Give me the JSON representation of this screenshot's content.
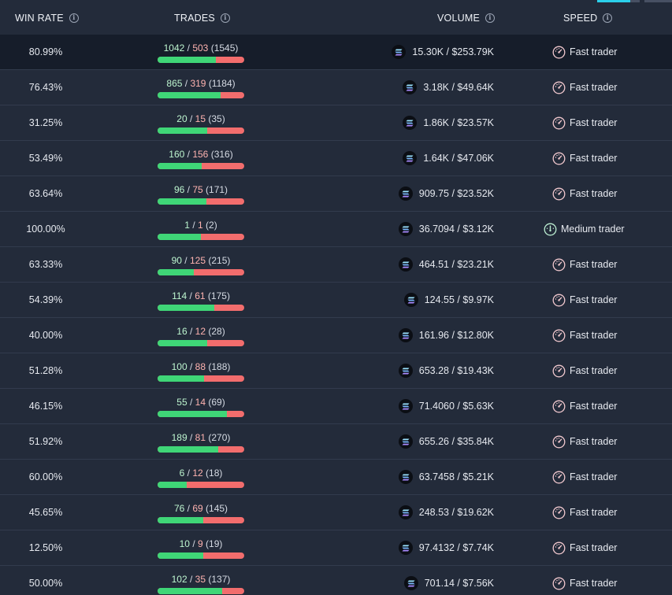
{
  "header": {
    "win_rate": "WIN RATE",
    "trades": "TRADES",
    "volume": "VOLUME",
    "speed": "SPEED"
  },
  "icons": {
    "info": "info-icon",
    "token": "solana-icon",
    "fast": "speedometer-icon",
    "medium": "speedometer-icon"
  },
  "colors": {
    "win": "#3fd677",
    "loss": "#f26d6d",
    "accent_tab": "#2bd0ea",
    "highlight_row": "#161d2a"
  },
  "rows": [
    {
      "win_rate": "80.99%",
      "wins": "1042",
      "losses": "503",
      "total": "(1545)",
      "win_fraction": 0.674,
      "amount": "15.30K",
      "usd": "$253.79K",
      "speed": "Fast trader",
      "speed_type": "fast"
    },
    {
      "win_rate": "76.43%",
      "wins": "865",
      "losses": "319",
      "total": "(1184)",
      "win_fraction": 0.731,
      "amount": "3.18K",
      "usd": "$49.64K",
      "speed": "Fast trader",
      "speed_type": "fast"
    },
    {
      "win_rate": "31.25%",
      "wins": "20",
      "losses": "15",
      "total": "(35)",
      "win_fraction": 0.571,
      "amount": "1.86K",
      "usd": "$23.57K",
      "speed": "Fast trader",
      "speed_type": "fast"
    },
    {
      "win_rate": "53.49%",
      "wins": "160",
      "losses": "156",
      "total": "(316)",
      "win_fraction": 0.506,
      "amount": "1.64K",
      "usd": "$47.06K",
      "speed": "Fast trader",
      "speed_type": "fast"
    },
    {
      "win_rate": "63.64%",
      "wins": "96",
      "losses": "75",
      "total": "(171)",
      "win_fraction": 0.561,
      "amount": "909.75",
      "usd": "$23.52K",
      "speed": "Fast trader",
      "speed_type": "fast"
    },
    {
      "win_rate": "100.00%",
      "wins": "1",
      "losses": "1",
      "total": "(2)",
      "win_fraction": 0.5,
      "amount": "36.7094",
      "usd": "$3.12K",
      "speed": "Medium trader",
      "speed_type": "medium"
    },
    {
      "win_rate": "63.33%",
      "wins": "90",
      "losses": "125",
      "total": "(215)",
      "win_fraction": 0.419,
      "amount": "464.51",
      "usd": "$23.21K",
      "speed": "Fast trader",
      "speed_type": "fast"
    },
    {
      "win_rate": "54.39%",
      "wins": "114",
      "losses": "61",
      "total": "(175)",
      "win_fraction": 0.651,
      "amount": "124.55",
      "usd": "$9.97K",
      "speed": "Fast trader",
      "speed_type": "fast"
    },
    {
      "win_rate": "40.00%",
      "wins": "16",
      "losses": "12",
      "total": "(28)",
      "win_fraction": 0.571,
      "amount": "161.96",
      "usd": "$12.80K",
      "speed": "Fast trader",
      "speed_type": "fast"
    },
    {
      "win_rate": "51.28%",
      "wins": "100",
      "losses": "88",
      "total": "(188)",
      "win_fraction": 0.532,
      "amount": "653.28",
      "usd": "$19.43K",
      "speed": "Fast trader",
      "speed_type": "fast"
    },
    {
      "win_rate": "46.15%",
      "wins": "55",
      "losses": "14",
      "total": "(69)",
      "win_fraction": 0.797,
      "amount": "71.4060",
      "usd": "$5.63K",
      "speed": "Fast trader",
      "speed_type": "fast"
    },
    {
      "win_rate": "51.92%",
      "wins": "189",
      "losses": "81",
      "total": "(270)",
      "win_fraction": 0.7,
      "amount": "655.26",
      "usd": "$35.84K",
      "speed": "Fast trader",
      "speed_type": "fast"
    },
    {
      "win_rate": "60.00%",
      "wins": "6",
      "losses": "12",
      "total": "(18)",
      "win_fraction": 0.333,
      "amount": "63.7458",
      "usd": "$5.21K",
      "speed": "Fast trader",
      "speed_type": "fast"
    },
    {
      "win_rate": "45.65%",
      "wins": "76",
      "losses": "69",
      "total": "(145)",
      "win_fraction": 0.524,
      "amount": "248.53",
      "usd": "$19.62K",
      "speed": "Fast trader",
      "speed_type": "fast"
    },
    {
      "win_rate": "12.50%",
      "wins": "10",
      "losses": "9",
      "total": "(19)",
      "win_fraction": 0.526,
      "amount": "97.4132",
      "usd": "$7.74K",
      "speed": "Fast trader",
      "speed_type": "fast"
    },
    {
      "win_rate": "50.00%",
      "wins": "102",
      "losses": "35",
      "total": "(137)",
      "win_fraction": 0.745,
      "amount": "701.14",
      "usd": "$7.56K",
      "speed": "Fast trader",
      "speed_type": "fast"
    }
  ]
}
